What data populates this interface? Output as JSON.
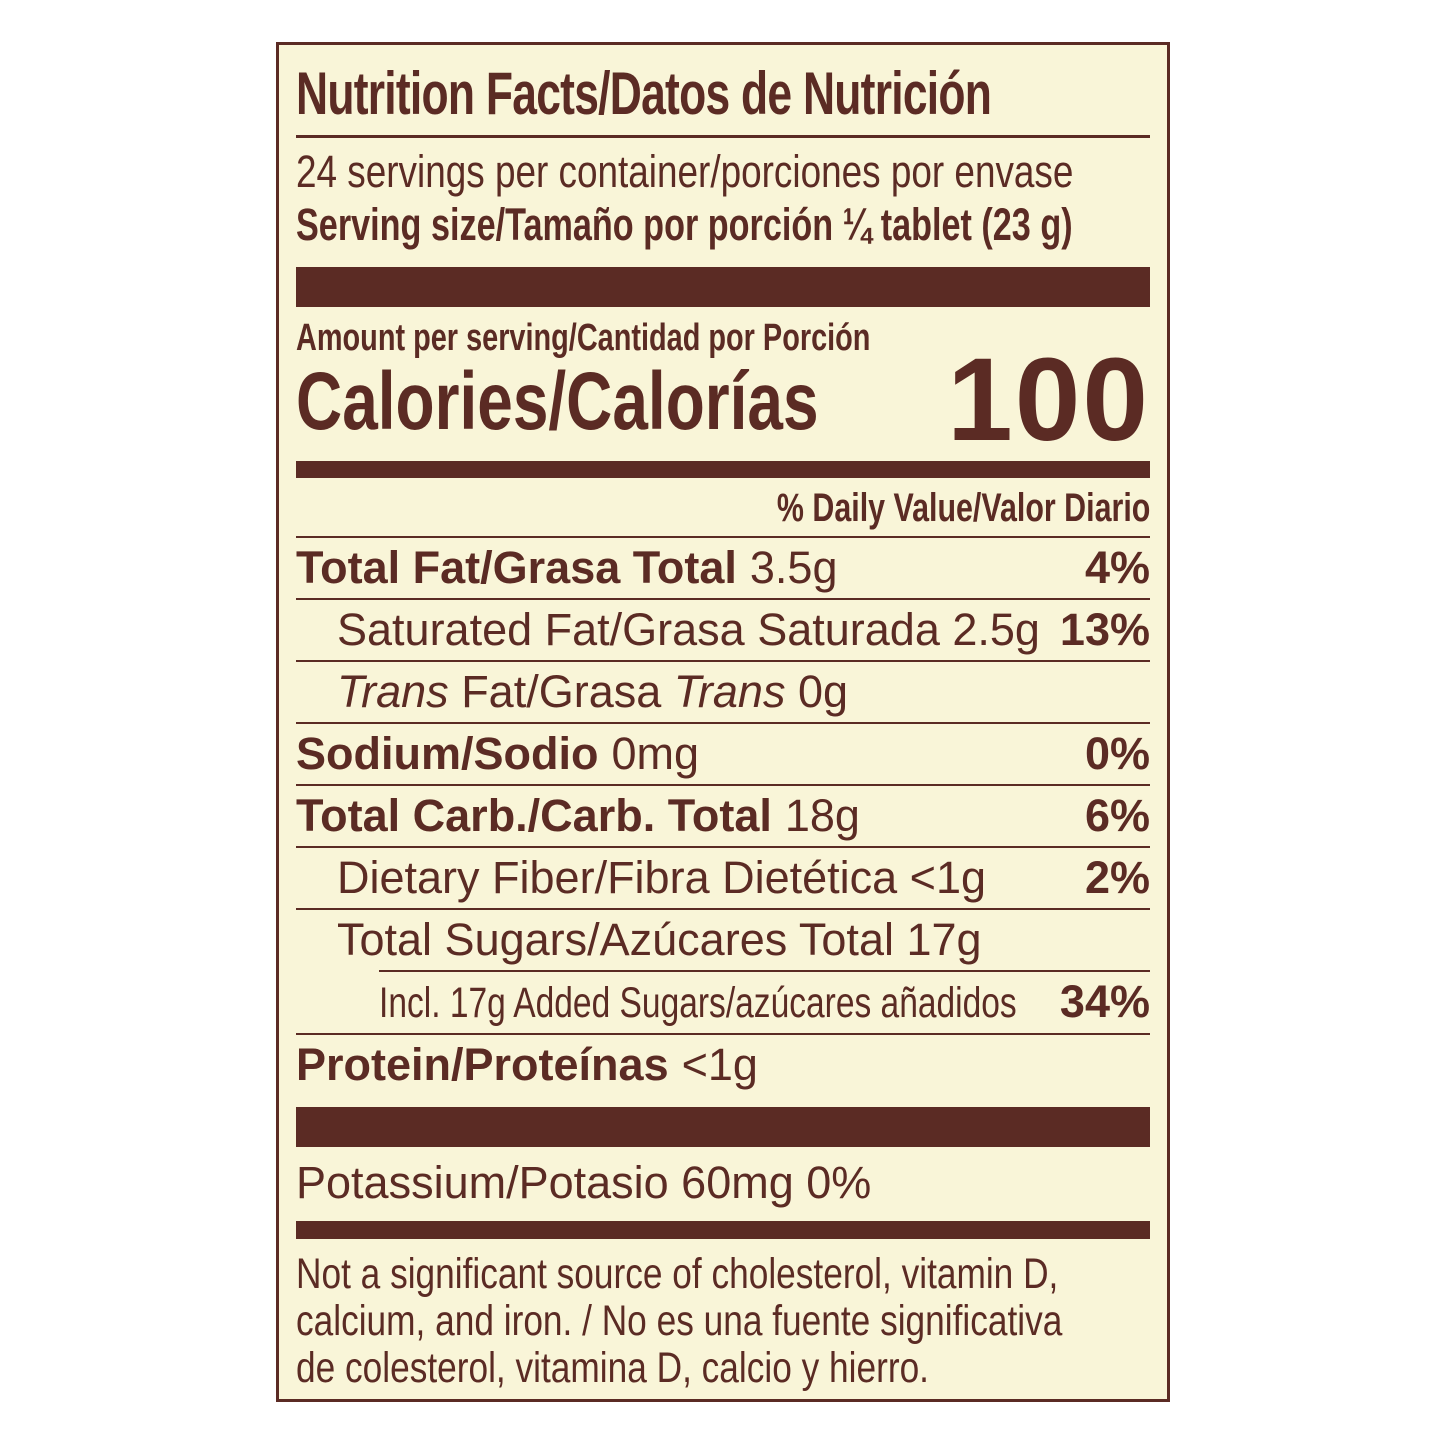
{
  "label": {
    "title": "Nutrition Facts/Datos de Nutrición",
    "servings_per_container": "24 servings per container/porciones por envase",
    "serving_size": "Serving size/Tamaño por porción ¼ tablet (23 g)",
    "amount_per_serving": "Amount per serving/Cantidad por Porción",
    "calories_label": "Calories/Calorías",
    "calories_value": "100",
    "daily_value_header": "% Daily Value/Valor Diario",
    "rows": {
      "total_fat": {
        "name": "Total Fat/Grasa Total",
        "amount": "3.5g",
        "dv": "4%"
      },
      "saturated_fat": {
        "name": "Saturated Fat/Grasa Saturada 2.5g",
        "dv": "13%"
      },
      "trans_fat": {
        "italic1": "Trans",
        "mid": " Fat/Grasa ",
        "italic2": "Trans",
        "amount": " 0g"
      },
      "sodium": {
        "name": "Sodium/Sodio",
        "amount": "0mg",
        "dv": "0%"
      },
      "total_carb": {
        "name": "Total Carb./Carb. Total",
        "amount": "18g",
        "dv": "6%"
      },
      "dietary_fiber": {
        "name": "Dietary Fiber/Fibra Dietética <1g",
        "dv": "2%"
      },
      "total_sugars": {
        "name": "Total Sugars/Azúcares Total 17g"
      },
      "added_sugars": {
        "name": "Incl. 17g Added Sugars/azúcares añadidos",
        "dv": "34%"
      },
      "protein": {
        "name": "Protein/Proteínas",
        "amount": "<1g"
      },
      "potassium": {
        "name": "Potassium/Potasio 60mg 0%"
      }
    },
    "footnote_lines": [
      "Not a significant source of cholesterol, vitamin D,",
      "calcium, and iron. / No es una fuente significativa",
      "de colesterol, vitamina D, calcio y hierro."
    ],
    "colors": {
      "ink": "#5b2b24",
      "background": "#f9f5d8",
      "page": "#ffffff"
    }
  }
}
